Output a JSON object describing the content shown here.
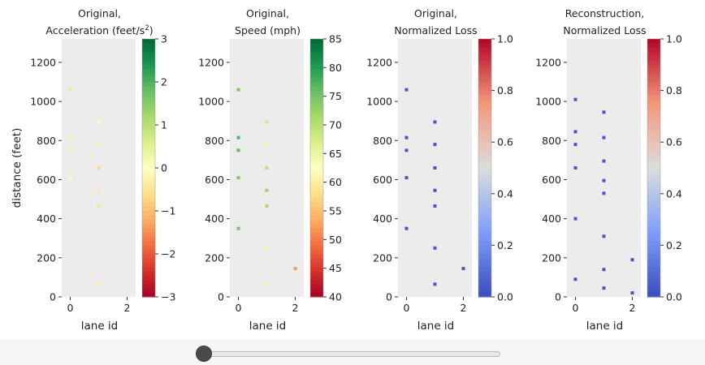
{
  "figure": {
    "shared_ylabel": "distance (feet)"
  },
  "chart_data": [
    {
      "type": "heatmap",
      "title_lines": [
        "Original,",
        "Acceleration (feet/s"
      ],
      "title_sup": "2",
      "title_suffix": ")",
      "xlabel": "lane id",
      "ylabel": "distance (feet)",
      "xticks": [
        0,
        2
      ],
      "xlim": [
        -0.3,
        2.3
      ],
      "ylim": [
        0,
        1320
      ],
      "yticks": [
        0,
        200,
        400,
        600,
        800,
        1000,
        1200
      ],
      "colorbar": {
        "colormap": "RdYlGn",
        "range": [
          -3,
          3
        ],
        "ticks": [
          3,
          2,
          1,
          0,
          -1,
          -2,
          -3
        ],
        "tick_labels": [
          "3",
          "2",
          "1",
          "0",
          "−1",
          "−2",
          "−3"
        ]
      },
      "points": [
        {
          "lane": 0,
          "distance": 1060,
          "value": 0.5
        },
        {
          "lane": 0,
          "distance": 815,
          "value": 0.3
        },
        {
          "lane": 0,
          "distance": 750,
          "value": 0.15
        },
        {
          "lane": 0,
          "distance": 610,
          "value": -0.1
        },
        {
          "lane": 1,
          "distance": 895,
          "value": -0.1
        },
        {
          "lane": 1,
          "distance": 780,
          "value": -0.2
        },
        {
          "lane": 1,
          "distance": 660,
          "value": -0.7
        },
        {
          "lane": 1,
          "distance": 545,
          "value": -0.4
        },
        {
          "lane": 1,
          "distance": 465,
          "value": -0.5
        },
        {
          "lane": 1,
          "distance": 65,
          "value": -0.3
        }
      ]
    },
    {
      "type": "heatmap",
      "title_lines": [
        "Original,",
        "Speed (mph)"
      ],
      "xlabel": "lane id",
      "xticks": [
        0,
        2
      ],
      "xlim": [
        -0.3,
        2.3
      ],
      "ylim": [
        0,
        1320
      ],
      "yticks": [
        0,
        200,
        400,
        600,
        800,
        1000,
        1200
      ],
      "colorbar": {
        "colormap": "RdYlGn",
        "range": [
          40,
          85
        ],
        "ticks": [
          85,
          80,
          75,
          70,
          65,
          60,
          55,
          50,
          45,
          40
        ],
        "tick_labels": [
          "85",
          "80",
          "75",
          "70",
          "65",
          "60",
          "55",
          "50",
          "45",
          "40"
        ]
      },
      "points": [
        {
          "lane": 0,
          "distance": 1060,
          "value": 74
        },
        {
          "lane": 0,
          "distance": 815,
          "value": 77
        },
        {
          "lane": 0,
          "distance": 750,
          "value": 76
        },
        {
          "lane": 0,
          "distance": 610,
          "value": 74
        },
        {
          "lane": 0,
          "distance": 350,
          "value": 75
        },
        {
          "lane": 1,
          "distance": 895,
          "value": 68
        },
        {
          "lane": 1,
          "distance": 780,
          "value": 65
        },
        {
          "lane": 1,
          "distance": 660,
          "value": 70
        },
        {
          "lane": 1,
          "distance": 545,
          "value": 72
        },
        {
          "lane": 1,
          "distance": 465,
          "value": 71
        },
        {
          "lane": 1,
          "distance": 250,
          "value": 65
        },
        {
          "lane": 1,
          "distance": 65,
          "value": 64
        },
        {
          "lane": 2,
          "distance": 145,
          "value": 52
        }
      ]
    },
    {
      "type": "heatmap",
      "title_lines": [
        "Original,",
        "Normalized Loss"
      ],
      "xlabel": "lane id",
      "xticks": [
        0,
        2
      ],
      "xlim": [
        -0.3,
        2.3
      ],
      "ylim": [
        0,
        1320
      ],
      "yticks": [
        0,
        200,
        400,
        600,
        800,
        1000,
        1200
      ],
      "colorbar": {
        "colormap": "coolwarm",
        "range": [
          0,
          1
        ],
        "ticks": [
          1.0,
          0.8,
          0.6,
          0.4,
          0.2,
          0.0
        ],
        "tick_labels": [
          "1.0",
          "0.8",
          "0.6",
          "0.4",
          "0.2",
          "0.0"
        ]
      },
      "points": [
        {
          "lane": 0,
          "distance": 1060,
          "value": 0.03
        },
        {
          "lane": 0,
          "distance": 815,
          "value": 0.03
        },
        {
          "lane": 0,
          "distance": 750,
          "value": 0.03
        },
        {
          "lane": 0,
          "distance": 610,
          "value": 0.03
        },
        {
          "lane": 0,
          "distance": 350,
          "value": 0.03
        },
        {
          "lane": 1,
          "distance": 895,
          "value": 0.03
        },
        {
          "lane": 1,
          "distance": 780,
          "value": 0.03
        },
        {
          "lane": 1,
          "distance": 660,
          "value": 0.03
        },
        {
          "lane": 1,
          "distance": 545,
          "value": 0.03
        },
        {
          "lane": 1,
          "distance": 465,
          "value": 0.03
        },
        {
          "lane": 1,
          "distance": 250,
          "value": 0.03
        },
        {
          "lane": 1,
          "distance": 65,
          "value": 0.03
        },
        {
          "lane": 2,
          "distance": 145,
          "value": 0.03
        }
      ]
    },
    {
      "type": "heatmap",
      "title_lines": [
        "Reconstruction,",
        "Normalized Loss"
      ],
      "xlabel": "lane id",
      "xticks": [
        0,
        2
      ],
      "xlim": [
        -0.3,
        2.3
      ],
      "ylim": [
        0,
        1320
      ],
      "yticks": [
        0,
        200,
        400,
        600,
        800,
        1000,
        1200
      ],
      "colorbar": {
        "colormap": "coolwarm",
        "range": [
          0,
          1
        ],
        "ticks": [
          1.0,
          0.8,
          0.6,
          0.4,
          0.2,
          0.0
        ],
        "tick_labels": [
          "1.0",
          "0.8",
          "0.6",
          "0.4",
          "0.2",
          "0.0"
        ]
      },
      "points": [
        {
          "lane": 0,
          "distance": 1010,
          "value": 0.03
        },
        {
          "lane": 0,
          "distance": 845,
          "value": 0.03
        },
        {
          "lane": 0,
          "distance": 780,
          "value": 0.03
        },
        {
          "lane": 0,
          "distance": 660,
          "value": 0.03
        },
        {
          "lane": 0,
          "distance": 400,
          "value": 0.03
        },
        {
          "lane": 0,
          "distance": 90,
          "value": 0.03
        },
        {
          "lane": 1,
          "distance": 945,
          "value": 0.03
        },
        {
          "lane": 1,
          "distance": 815,
          "value": 0.03
        },
        {
          "lane": 1,
          "distance": 695,
          "value": 0.03
        },
        {
          "lane": 1,
          "distance": 595,
          "value": 0.03
        },
        {
          "lane": 1,
          "distance": 530,
          "value": 0.03
        },
        {
          "lane": 1,
          "distance": 310,
          "value": 0.03
        },
        {
          "lane": 1,
          "distance": 140,
          "value": 0.03
        },
        {
          "lane": 1,
          "distance": 45,
          "value": 0.03
        },
        {
          "lane": 2,
          "distance": 190,
          "value": 0.03
        },
        {
          "lane": 2,
          "distance": 20,
          "value": 0.03
        }
      ]
    }
  ],
  "slider": {
    "value": 0
  }
}
